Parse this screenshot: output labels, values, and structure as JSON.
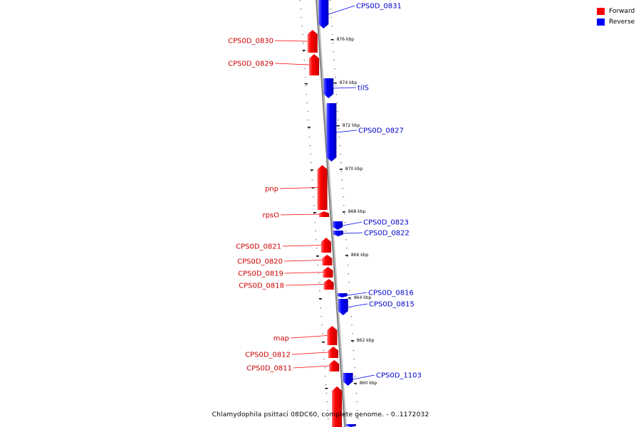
{
  "legend": {
    "forward": {
      "label": "Forward",
      "color": "#ff0000"
    },
    "reverse": {
      "label": "Reverse",
      "color": "#0000ff"
    }
  },
  "caption": "Chlamydophila psittaci 08DC60, complete genome. - 0..1172032",
  "colors": {
    "forward": "#ff0000",
    "reverse": "#0000ff",
    "label_forward": "#cc0000",
    "label_reverse": "#0000cc",
    "axis": "#888888"
  },
  "scale_labels": [
    "876 kbp",
    "874 kbp",
    "872 kbp",
    "870 kbp",
    "868 kbp",
    "866 kbp",
    "864 kbp",
    "862 kbp",
    "860 kbp"
  ],
  "genes": [
    {
      "name": "CPS0D_0831",
      "strand": "reverse"
    },
    {
      "name": "CPS0D_0830",
      "strand": "forward"
    },
    {
      "name": "CPS0D_0829",
      "strand": "forward"
    },
    {
      "name": "tilS",
      "strand": "reverse"
    },
    {
      "name": "CPS0D_0827",
      "strand": "reverse"
    },
    {
      "name": "pnp",
      "strand": "forward"
    },
    {
      "name": "rpsO",
      "strand": "forward"
    },
    {
      "name": "CPS0D_0823",
      "strand": "reverse"
    },
    {
      "name": "CPS0D_0822",
      "strand": "reverse"
    },
    {
      "name": "CPS0D_0821",
      "strand": "forward"
    },
    {
      "name": "CPS0D_0820",
      "strand": "forward"
    },
    {
      "name": "CPS0D_0819",
      "strand": "forward"
    },
    {
      "name": "CPS0D_0818",
      "strand": "forward"
    },
    {
      "name": "CPS0D_0816",
      "strand": "reverse"
    },
    {
      "name": "CPS0D_0815",
      "strand": "reverse"
    },
    {
      "name": "map",
      "strand": "forward"
    },
    {
      "name": "CPS0D_0812",
      "strand": "forward"
    },
    {
      "name": "CPS0D_0811",
      "strand": "forward"
    },
    {
      "name": "CPS0D_1103",
      "strand": "reverse"
    }
  ]
}
